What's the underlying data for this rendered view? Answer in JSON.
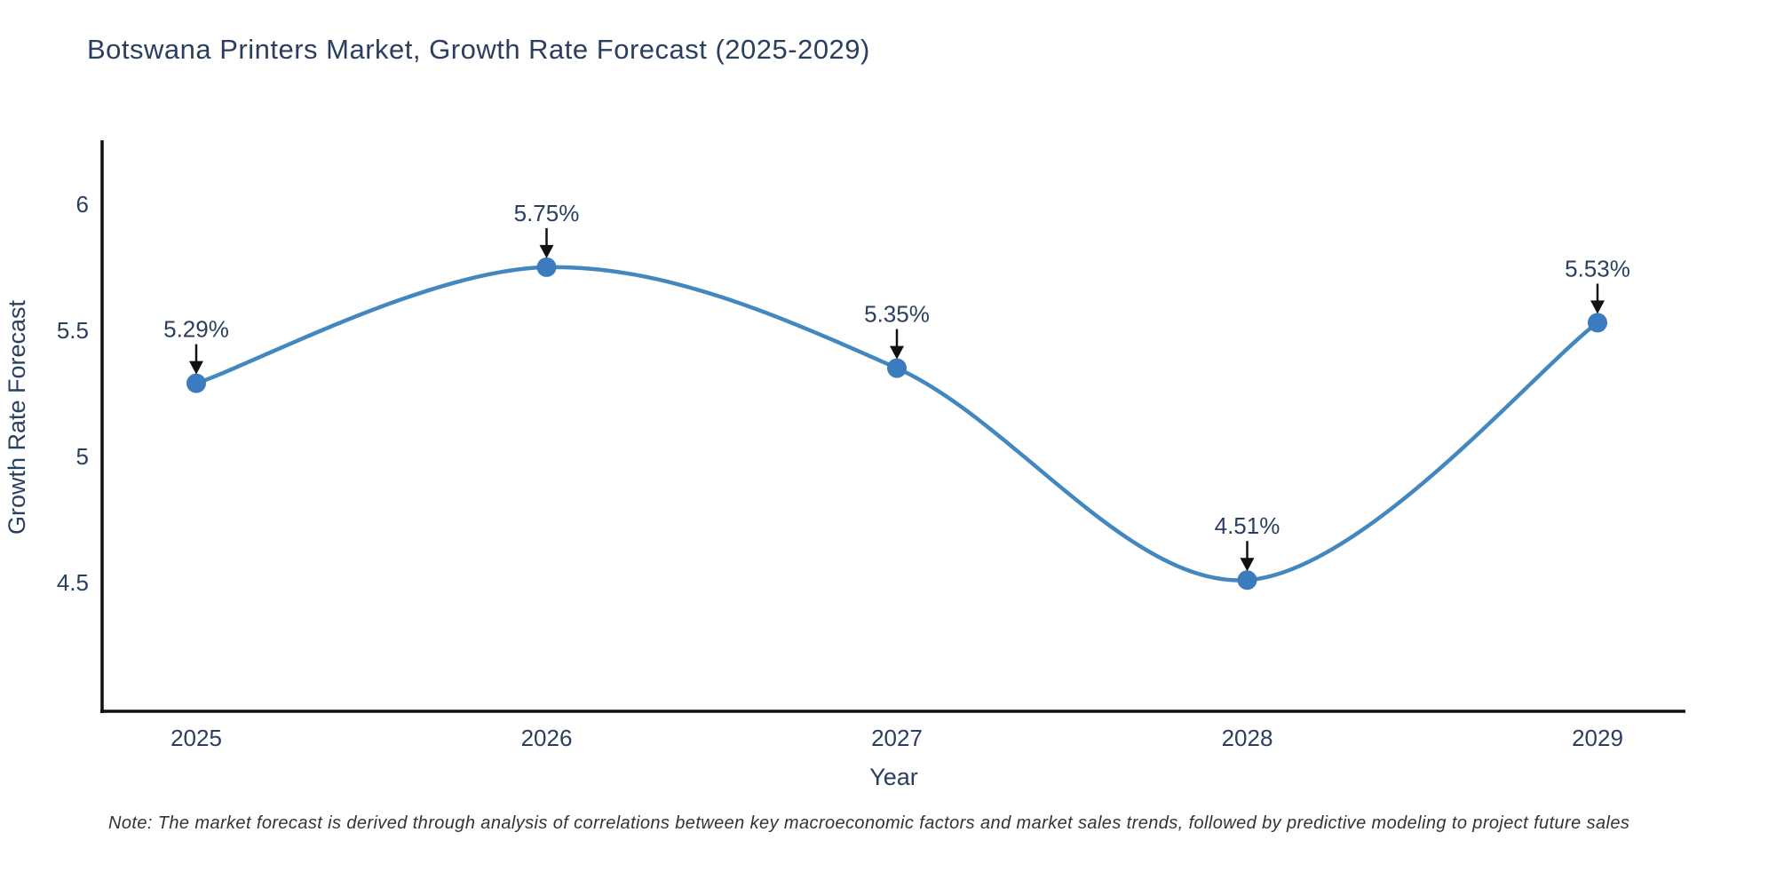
{
  "title": "Botswana Printers Market, Growth Rate Forecast (2025-2029)",
  "note": "Note: The market forecast is derived through analysis of correlations between key macroeconomic factors and market sales trends, followed by predictive modeling to project future sales",
  "chart_data": {
    "type": "line",
    "title": "Botswana Printers Market, Growth Rate Forecast (2025-2029)",
    "xlabel": "Year",
    "ylabel": "Growth Rate Forecast",
    "categories": [
      "2025",
      "2026",
      "2027",
      "2028",
      "2029"
    ],
    "series": [
      {
        "name": "Growth Rate Forecast",
        "values": [
          5.29,
          5.75,
          5.35,
          4.51,
          5.53
        ]
      }
    ],
    "point_labels": [
      "5.29%",
      "5.75%",
      "5.35%",
      "4.51%",
      "5.53%"
    ],
    "yticks": [
      4.5,
      5,
      5.5,
      6
    ],
    "ylim": [
      3.99,
      6.253
    ],
    "line_shape": "spline",
    "grid": false,
    "legend_position": "none",
    "colors": {
      "line": "#4287c0",
      "marker": "#3a7cbe",
      "axis": "#111111",
      "text": "#2a3f5f",
      "annotation_arrow": "#111111"
    }
  }
}
